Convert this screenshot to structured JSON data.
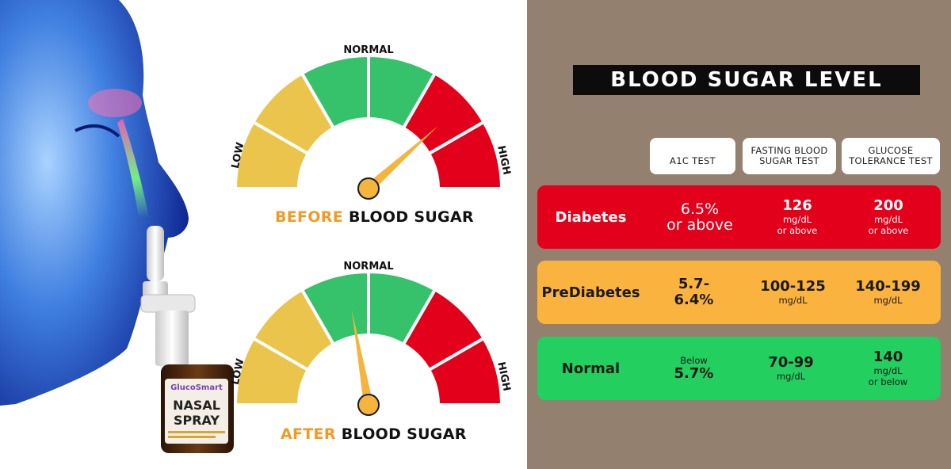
{
  "gauges": {
    "before": {
      "normal_label": "NORMAL",
      "low_label": "LOW",
      "high_label": "HIGH",
      "title_accent": "BEFORE",
      "title_rest": "BLOOD SUGAR"
    },
    "after": {
      "normal_label": "NORMAL",
      "low_label": "LOW",
      "high_label": "HIGH",
      "title_accent": "AFTER",
      "title_rest": "BLOOD SUGAR"
    },
    "colors": {
      "low": "#ebc44b",
      "normal": "#36c26b",
      "high": "#e2001a",
      "needle": "#f5b43b"
    }
  },
  "product": {
    "brand": "GlucoSmart",
    "name_line1": "NASAL",
    "name_line2": "SPRAY"
  },
  "table": {
    "title": "BLOOD SUGAR LEVEL",
    "columns": [
      {
        "line1": "A1C TEST",
        "line2": ""
      },
      {
        "line1": "FASTING BLOOD",
        "line2": "SUGAR TEST"
      },
      {
        "line1": "GLUCOSE",
        "line2": "TOLERANCE TEST"
      }
    ],
    "rows": [
      {
        "name": "Diabetes",
        "a1c": {
          "main1": "6.5%",
          "main2": "or above"
        },
        "fasting": {
          "main": "126",
          "unit": "mg/dL",
          "sub": "or above"
        },
        "tolerance": {
          "main": "200",
          "unit": "mg/dL",
          "sub": "or above"
        }
      },
      {
        "name": "PreDiabetes",
        "a1c": {
          "main1": "5.7-",
          "main2": "6.4%"
        },
        "fasting": {
          "main": "100-125",
          "unit": "mg/dL"
        },
        "tolerance": {
          "main": "140-199",
          "unit": "mg/dL"
        }
      },
      {
        "name": "Normal",
        "a1c": {
          "pre": "Below",
          "main": "5.7%"
        },
        "fasting": {
          "main": "70-99",
          "unit": "mg/dL"
        },
        "tolerance": {
          "main": "140",
          "unit": "mg/dL",
          "sub": "or below"
        }
      }
    ],
    "colors": {
      "diabetes": "#e2001a",
      "prediabetes": "#fbb33f",
      "normal": "#23cf5f",
      "panel_bg": "#94806f"
    }
  }
}
